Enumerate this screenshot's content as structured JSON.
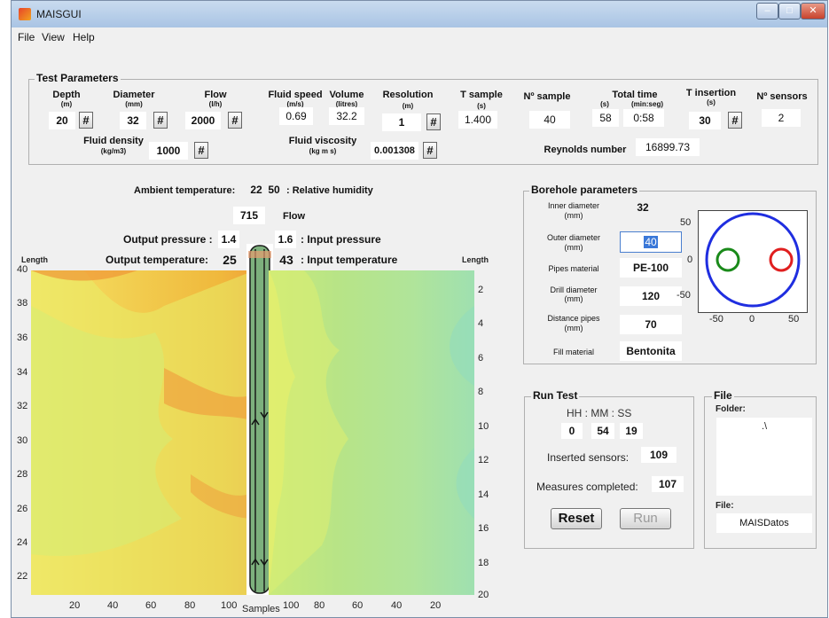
{
  "window": {
    "title": "MAISGUI"
  },
  "menu": [
    "File",
    "View",
    "Help"
  ],
  "test_params": {
    "title": "Test Parameters",
    "depth": {
      "label": "Depth",
      "unit": "(m)",
      "value": "20"
    },
    "diameter": {
      "label": "Diameter",
      "unit": "(mm)",
      "value": "32"
    },
    "flow": {
      "label": "Flow",
      "unit": "(l/h)",
      "value": "2000"
    },
    "fluid_speed": {
      "label": "Fluid speed",
      "unit": "(m/s)",
      "value": "0.69"
    },
    "volume": {
      "label": "Volume",
      "unit": "(litres)",
      "value": "32.2"
    },
    "resolution": {
      "label": "Resolution",
      "unit": "(m)",
      "value": "1"
    },
    "t_sample": {
      "label": "T sample",
      "unit": "(s)",
      "value": "1.400"
    },
    "n_sample": {
      "label": "Nº sample",
      "value": "40"
    },
    "total_time": {
      "label": "Total time",
      "unit_s": "(s)",
      "unit_min": "(min:seg)",
      "value_s": "58",
      "value_min": "0:58"
    },
    "t_insertion": {
      "label": "T insertion",
      "unit": "(s)",
      "value": "30"
    },
    "n_sensors": {
      "label": "Nº sensors",
      "value": "2"
    },
    "fluid_density": {
      "label": "Fluid density",
      "unit": "(kg/m3)",
      "value": "1000"
    },
    "fluid_viscosity": {
      "label": "Fluid viscosity",
      "unit": "(kg m s)",
      "value": "0.001308"
    },
    "reynolds": {
      "label": "Reynolds number",
      "value": "16899.73"
    },
    "hash_label": "#"
  },
  "monitor": {
    "ambient_label": "Ambient temperature:",
    "ambient_value": "22",
    "humidity_value": "50",
    "humidity_label": ": Relative humidity",
    "flow_value": "715",
    "flow_label": "Flow",
    "output_pressure_label": "Output pressure :",
    "output_pressure_value": "1.4",
    "input_pressure_value": "1.6",
    "input_pressure_label": ": Input pressure",
    "output_temp_label": "Output temperature:",
    "output_temp_value": "25",
    "input_temp_value": "43",
    "input_temp_label": ": Input temperature"
  },
  "left_plot": {
    "length_label": "Length",
    "y_ticks": [
      "40",
      "38",
      "36",
      "34",
      "32",
      "30",
      "28",
      "26",
      "24",
      "22"
    ],
    "x_ticks": [
      "20",
      "40",
      "60",
      "80",
      "100"
    ]
  },
  "right_plot": {
    "length_label": "Length",
    "y_ticks": [
      "2",
      "4",
      "6",
      "8",
      "10",
      "12",
      "14",
      "16",
      "18",
      "20"
    ],
    "x_ticks": [
      "100",
      "80",
      "60",
      "40",
      "20"
    ],
    "x_label": "Samples"
  },
  "borehole": {
    "title": "Borehole parameters",
    "inner_label": "Inner diameter",
    "inner_unit": "(mm)",
    "inner_value": "32",
    "outer_label": "Outer diameter",
    "outer_unit": "(mm)",
    "outer_value": "40",
    "pipes_label": "Pipes material",
    "pipes_value": "PE-100",
    "drill_label": "Drill diameter",
    "drill_unit": "(mm)",
    "drill_value": "120",
    "distance_label": "Distance pipes",
    "distance_unit": "(mm)",
    "distance_value": "70",
    "fill_label": "Fill material",
    "fill_value": "Bentonita",
    "plot_y_ticks": [
      "50",
      "0",
      "-50"
    ],
    "plot_x_ticks": [
      "-50",
      "0",
      "50"
    ],
    "colors": {
      "drill": "#1f2ee0",
      "pipe_left": "#1a8a1a",
      "pipe_right": "#e01f1f"
    }
  },
  "run_test": {
    "title": "Run Test",
    "time_header": "HH  :  MM  :  SS",
    "hh": "0",
    "mm": "54",
    "ss": "19",
    "inserted_label": "Inserted sensors:",
    "inserted_value": "109",
    "measures_label": "Measures completed:",
    "measures_value": "107",
    "reset_label": "Reset",
    "run_label": "Run"
  },
  "file_panel": {
    "title": "File",
    "folder_label": "Folder:",
    "folder_value": ".\\",
    "file_label": "File:",
    "file_value": "MAISDatos"
  }
}
